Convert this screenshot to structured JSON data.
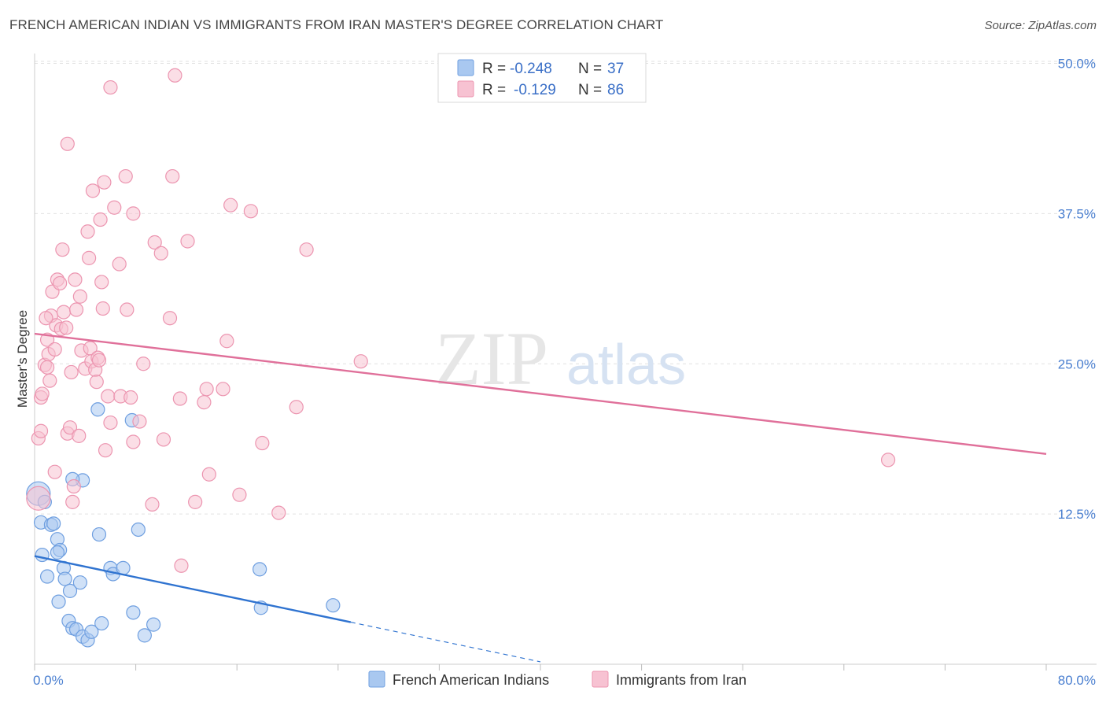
{
  "title": "FRENCH AMERICAN INDIAN VS IMMIGRANTS FROM IRAN MASTER'S DEGREE CORRELATION CHART",
  "source": "Source: ZipAtlas.com",
  "watermark": {
    "zip": "ZIP",
    "atlas": "atlas"
  },
  "chart_data": {
    "type": "scatter",
    "ylabel": "Master's Degree",
    "xlim": [
      0,
      80
    ],
    "ylim": [
      0,
      52
    ],
    "x_tick_labels": [
      {
        "value": 0,
        "label": "0.0%"
      },
      {
        "value": 80,
        "label": "80.0%"
      }
    ],
    "y_tick_labels": [
      {
        "value": 12.5,
        "label": "12.5%"
      },
      {
        "value": 25.0,
        "label": "25.0%"
      },
      {
        "value": 37.5,
        "label": "37.5%"
      },
      {
        "value": 50.0,
        "label": "50.0%"
      }
    ],
    "legend": {
      "r_label": "R =",
      "n_label": "N =",
      "entries": [
        {
          "r": "-0.248",
          "n": "37"
        },
        {
          "r": "-0.129",
          "n": "86"
        }
      ]
    },
    "series": [
      {
        "name": "French American Indians",
        "color": "#a9c8f0",
        "stroke": "#6f9fe0",
        "line_color": "#2f73d0",
        "trend": {
          "x0": 0,
          "y0": 9.0,
          "x1": 25,
          "y1": 3.5,
          "dash_to_x": 40
        },
        "points": [
          [
            0.3,
            14.2
          ],
          [
            0.8,
            13.5
          ],
          [
            0.5,
            11.8
          ],
          [
            1.3,
            11.6
          ],
          [
            1.5,
            11.7
          ],
          [
            1.8,
            10.4
          ],
          [
            2.0,
            9.5
          ],
          [
            0.6,
            9.1
          ],
          [
            1.8,
            9.3
          ],
          [
            2.3,
            8.0
          ],
          [
            2.4,
            7.1
          ],
          [
            1.0,
            7.3
          ],
          [
            2.8,
            6.1
          ],
          [
            3.6,
            6.8
          ],
          [
            1.9,
            5.2
          ],
          [
            2.7,
            3.6
          ],
          [
            3.0,
            3.0
          ],
          [
            3.3,
            2.9
          ],
          [
            3.8,
            2.3
          ],
          [
            4.2,
            2.0
          ],
          [
            4.5,
            2.7
          ],
          [
            5.3,
            3.4
          ],
          [
            6.0,
            8.0
          ],
          [
            6.2,
            7.5
          ],
          [
            7.0,
            8.0
          ],
          [
            7.8,
            4.3
          ],
          [
            8.7,
            2.4
          ],
          [
            9.4,
            3.3
          ],
          [
            8.2,
            11.2
          ],
          [
            7.7,
            20.3
          ],
          [
            5.0,
            21.2
          ],
          [
            3.8,
            15.3
          ],
          [
            3.0,
            15.4
          ],
          [
            5.1,
            10.8
          ],
          [
            17.8,
            7.9
          ],
          [
            17.9,
            4.7
          ],
          [
            23.6,
            4.9
          ]
        ]
      },
      {
        "name": "Immigrants from Iran",
        "color": "#f7c2d2",
        "stroke": "#ec95b0",
        "line_color": "#e0709a",
        "trend": {
          "x0": 0,
          "y0": 27.5,
          "x1": 80,
          "y1": 17.5
        },
        "points": [
          [
            0.3,
            13.8
          ],
          [
            0.3,
            18.8
          ],
          [
            0.5,
            19.4
          ],
          [
            0.5,
            22.2
          ],
          [
            0.6,
            22.5
          ],
          [
            0.8,
            24.9
          ],
          [
            1.0,
            24.7
          ],
          [
            1.0,
            27.0
          ],
          [
            1.1,
            25.8
          ],
          [
            1.2,
            23.6
          ],
          [
            1.3,
            29.0
          ],
          [
            1.4,
            31.0
          ],
          [
            1.6,
            26.2
          ],
          [
            1.7,
            28.2
          ],
          [
            1.8,
            32.0
          ],
          [
            2.0,
            31.7
          ],
          [
            2.1,
            27.9
          ],
          [
            2.2,
            34.5
          ],
          [
            2.3,
            29.3
          ],
          [
            2.5,
            28.0
          ],
          [
            2.6,
            19.2
          ],
          [
            2.8,
            19.7
          ],
          [
            2.9,
            24.3
          ],
          [
            3.0,
            13.5
          ],
          [
            3.1,
            14.8
          ],
          [
            3.2,
            32.0
          ],
          [
            3.3,
            29.5
          ],
          [
            3.5,
            19.0
          ],
          [
            3.6,
            30.6
          ],
          [
            3.7,
            26.1
          ],
          [
            4.0,
            24.6
          ],
          [
            4.2,
            36.0
          ],
          [
            4.3,
            33.8
          ],
          [
            4.4,
            26.3
          ],
          [
            4.5,
            25.2
          ],
          [
            4.6,
            39.4
          ],
          [
            4.8,
            24.5
          ],
          [
            4.9,
            23.5
          ],
          [
            5.0,
            25.5
          ],
          [
            5.1,
            25.3
          ],
          [
            5.2,
            37.0
          ],
          [
            5.3,
            31.8
          ],
          [
            5.4,
            29.6
          ],
          [
            5.5,
            40.1
          ],
          [
            5.6,
            17.8
          ],
          [
            5.8,
            22.3
          ],
          [
            6.0,
            20.1
          ],
          [
            6.3,
            38.0
          ],
          [
            6.7,
            33.3
          ],
          [
            6.8,
            22.3
          ],
          [
            7.2,
            40.6
          ],
          [
            7.3,
            29.5
          ],
          [
            7.6,
            22.2
          ],
          [
            7.8,
            37.5
          ],
          [
            7.8,
            18.5
          ],
          [
            8.3,
            20.2
          ],
          [
            8.6,
            25.0
          ],
          [
            9.3,
            13.3
          ],
          [
            9.5,
            35.1
          ],
          [
            10.0,
            34.2
          ],
          [
            10.2,
            18.7
          ],
          [
            10.7,
            28.8
          ],
          [
            10.9,
            40.6
          ],
          [
            11.5,
            22.1
          ],
          [
            11.6,
            8.2
          ],
          [
            12.1,
            35.2
          ],
          [
            12.7,
            13.5
          ],
          [
            13.4,
            21.8
          ],
          [
            13.6,
            22.9
          ],
          [
            13.8,
            15.8
          ],
          [
            14.9,
            22.9
          ],
          [
            15.2,
            26.9
          ],
          [
            15.5,
            38.2
          ],
          [
            16.2,
            14.1
          ],
          [
            17.1,
            37.7
          ],
          [
            18.0,
            18.4
          ],
          [
            19.3,
            12.6
          ],
          [
            20.7,
            21.4
          ],
          [
            21.5,
            34.5
          ],
          [
            25.8,
            25.2
          ],
          [
            6.0,
            48.0
          ],
          [
            11.1,
            49.0
          ],
          [
            2.6,
            43.3
          ],
          [
            67.5,
            17.0
          ],
          [
            0.9,
            28.8
          ],
          [
            1.6,
            16.0
          ]
        ]
      }
    ]
  },
  "bottom_legend": [
    "French American Indians",
    "Immigrants from Iran"
  ]
}
